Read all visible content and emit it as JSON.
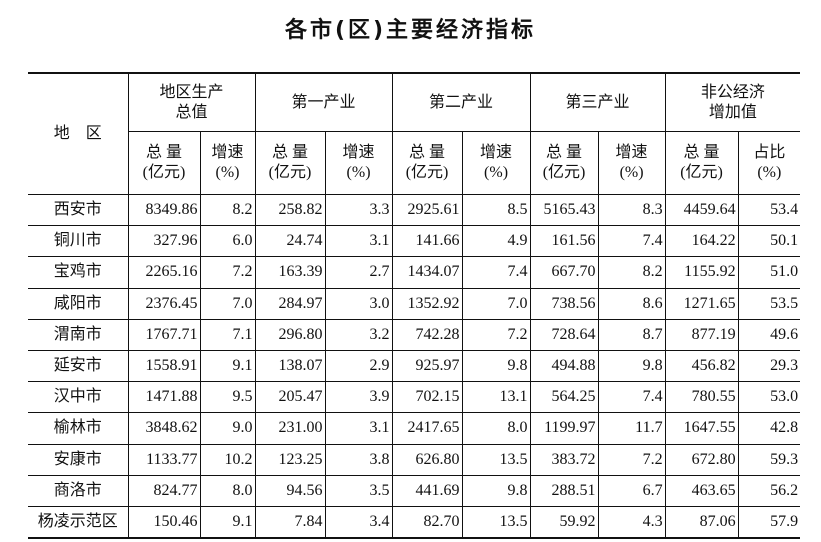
{
  "title": "各市(区)主要经济指标",
  "table": {
    "corner": "地　区",
    "groups": [
      "地区生产\n总值",
      "第一产业",
      "第二产业",
      "第三产业",
      "非公经济\n增加值"
    ],
    "subheaders": [
      "总 量\n(亿元)",
      "增速\n(%)",
      "总 量\n(亿元)",
      "增速\n(%)",
      "总 量\n(亿元)",
      "增速\n(%)",
      "总 量\n(亿元)",
      "增速\n(%)",
      "总 量\n(亿元)",
      "占比\n(%)"
    ],
    "rows": [
      [
        "西安市",
        "8349.86",
        "8.2",
        "258.82",
        "3.3",
        "2925.61",
        "8.5",
        "5165.43",
        "8.3",
        "4459.64",
        "53.4"
      ],
      [
        "铜川市",
        "327.96",
        "6.0",
        "24.74",
        "3.1",
        "141.66",
        "4.9",
        "161.56",
        "7.4",
        "164.22",
        "50.1"
      ],
      [
        "宝鸡市",
        "2265.16",
        "7.2",
        "163.39",
        "2.7",
        "1434.07",
        "7.4",
        "667.70",
        "8.2",
        "1155.92",
        "51.0"
      ],
      [
        "咸阳市",
        "2376.45",
        "7.0",
        "284.97",
        "3.0",
        "1352.92",
        "7.0",
        "738.56",
        "8.6",
        "1271.65",
        "53.5"
      ],
      [
        "渭南市",
        "1767.71",
        "7.1",
        "296.80",
        "3.2",
        "742.28",
        "7.2",
        "728.64",
        "8.7",
        "877.19",
        "49.6"
      ],
      [
        "延安市",
        "1558.91",
        "9.1",
        "138.07",
        "2.9",
        "925.97",
        "9.8",
        "494.88",
        "9.8",
        "456.82",
        "29.3"
      ],
      [
        "汉中市",
        "1471.88",
        "9.5",
        "205.47",
        "3.9",
        "702.15",
        "13.1",
        "564.25",
        "7.4",
        "780.55",
        "53.0"
      ],
      [
        "榆林市",
        "3848.62",
        "9.0",
        "231.00",
        "3.1",
        "2417.65",
        "8.0",
        "1199.97",
        "11.7",
        "1647.55",
        "42.8"
      ],
      [
        "安康市",
        "1133.77",
        "10.2",
        "123.25",
        "3.8",
        "626.80",
        "13.5",
        "383.72",
        "7.2",
        "672.80",
        "59.3"
      ],
      [
        "商洛市",
        "824.77",
        "8.0",
        "94.56",
        "3.5",
        "441.69",
        "9.8",
        "288.51",
        "6.7",
        "463.65",
        "56.2"
      ],
      [
        "杨凌示范区",
        "150.46",
        "9.1",
        "7.84",
        "3.4",
        "82.70",
        "13.5",
        "59.92",
        "4.3",
        "87.06",
        "57.9"
      ]
    ]
  }
}
